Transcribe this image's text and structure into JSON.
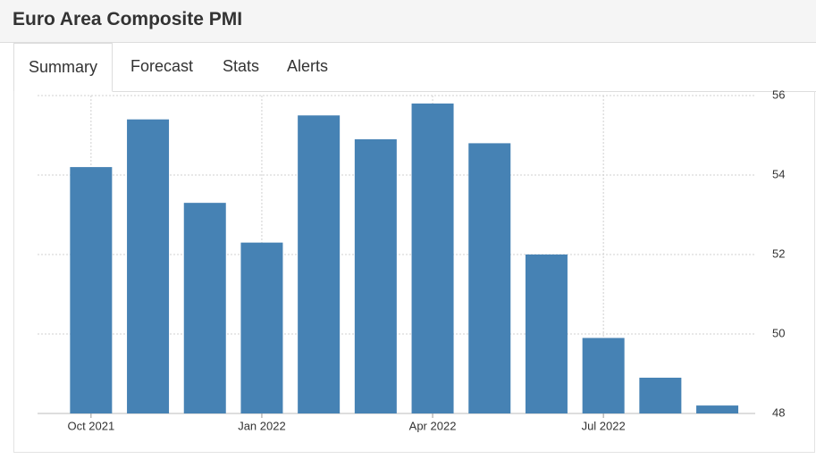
{
  "header": {
    "title": "Euro Area Composite PMI"
  },
  "tabs": [
    "Summary",
    "Forecast",
    "Stats",
    "Alerts"
  ],
  "chart_data": {
    "type": "bar",
    "categories": [
      "Oct 2021",
      null,
      null,
      "Jan 2022",
      null,
      null,
      "Apr 2022",
      null,
      null,
      "Jul 2022",
      null,
      null
    ],
    "values": [
      54.2,
      55.4,
      53.3,
      52.3,
      55.5,
      54.9,
      55.8,
      54.8,
      52.0,
      49.9,
      48.9,
      48.2
    ],
    "color": "#4682b4",
    "ylim": [
      48,
      56
    ],
    "yticks": [
      48,
      50,
      52,
      54,
      56
    ],
    "grid": true
  }
}
